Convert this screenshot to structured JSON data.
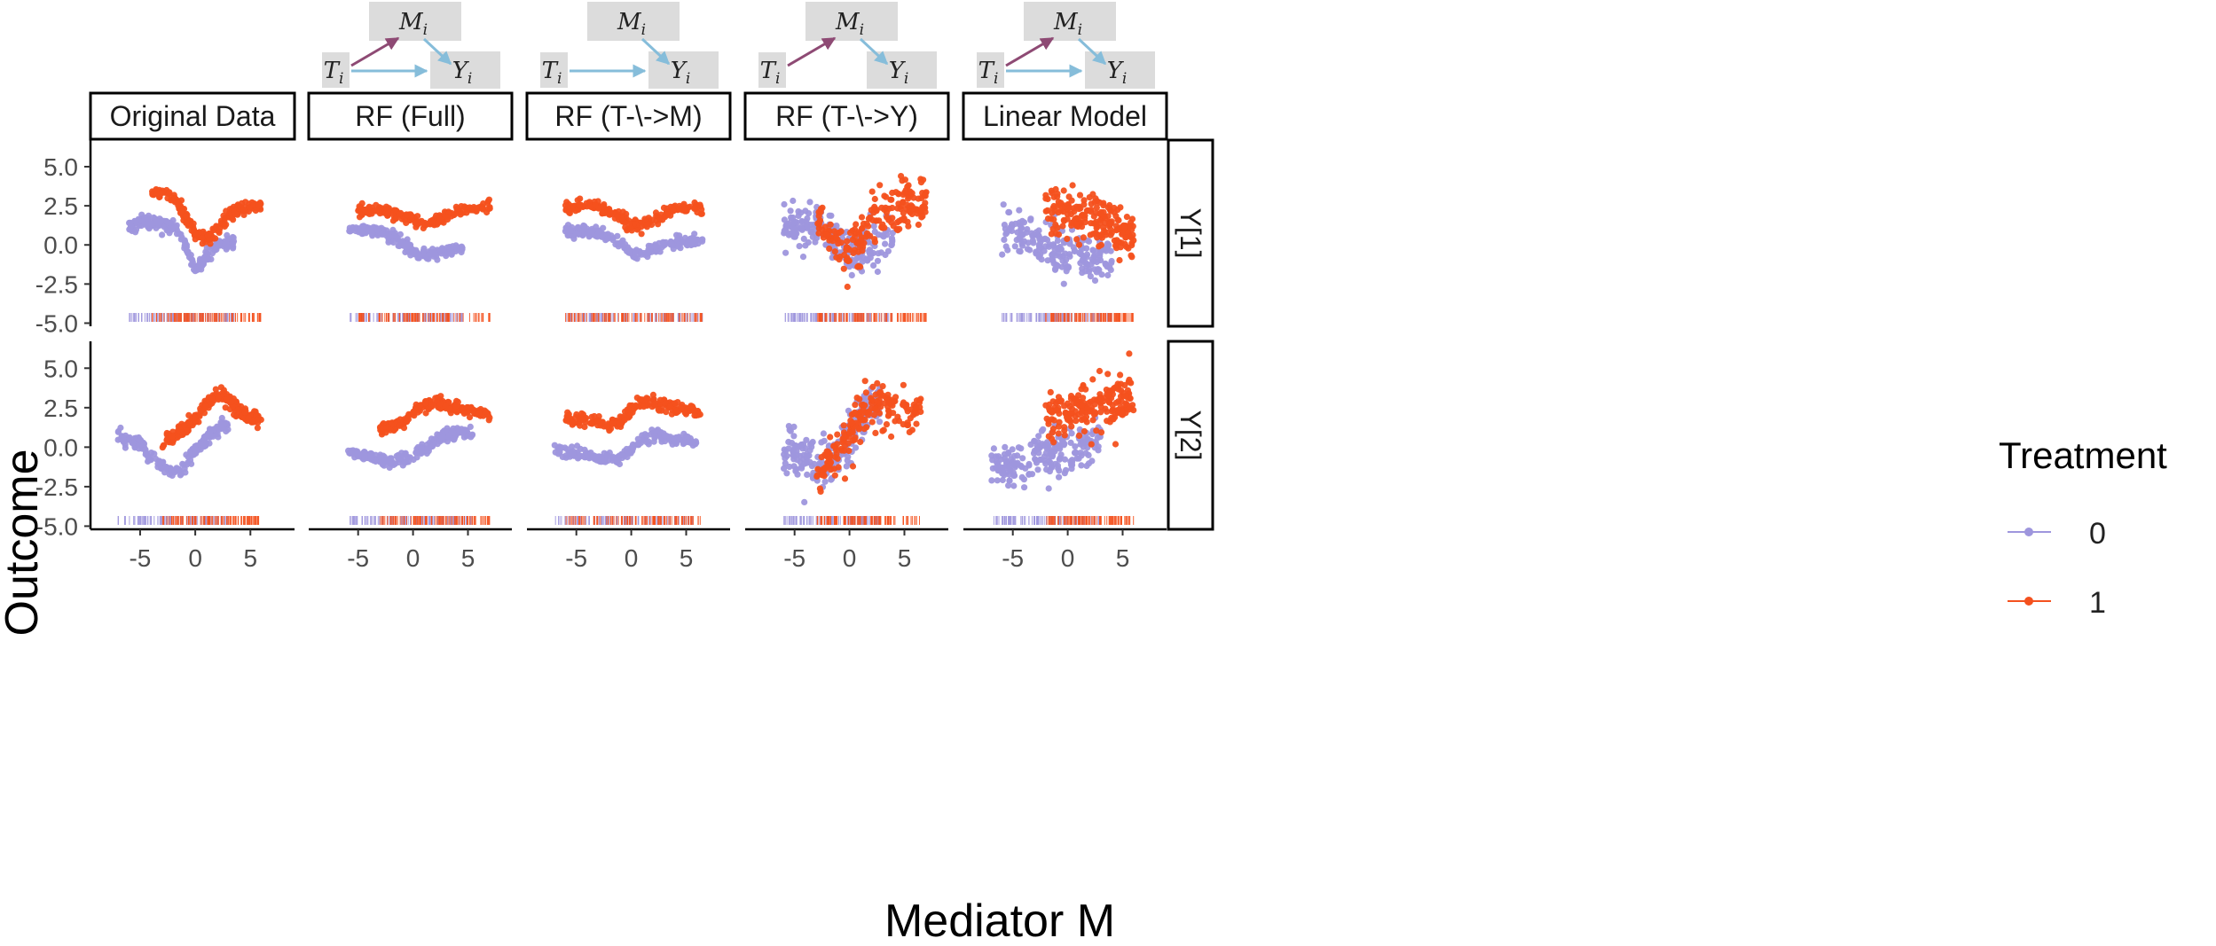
{
  "axis": {
    "xlabel": "Mediator M",
    "ylabel": "Outcome",
    "x_ticks": [
      -5,
      0,
      5
    ],
    "x_tick_labels": [
      "-5",
      "0",
      "5"
    ],
    "y_ticks": [
      -5,
      -2.5,
      0,
      2.5,
      5
    ],
    "y_tick_labels": [
      "-5.0",
      "-2.5",
      "0.0",
      "2.5",
      "5.0"
    ]
  },
  "legend": {
    "title": "Treatment",
    "items": [
      {
        "label": "0",
        "color": "#9E96DD"
      },
      {
        "label": "1",
        "color": "#F4511E"
      }
    ]
  },
  "panels": {
    "columns": [
      "Original Data",
      "RF (Full)",
      "RF (T-\\->M)",
      "RF (T-\\->Y)",
      "Linear Model"
    ],
    "rows": [
      "Y[1]",
      "Y[2]"
    ]
  },
  "dags": [
    {
      "column": "RF (Full)",
      "t_to_m": true,
      "t_to_y": true
    },
    {
      "column": "RF (T-\\->M)",
      "t_to_m": false,
      "t_to_y": true
    },
    {
      "column": "RF (T-\\->Y)",
      "t_to_m": true,
      "t_to_y": false
    },
    {
      "column": "Linear Model",
      "t_to_m": true,
      "t_to_y": true
    }
  ],
  "dag_labels": {
    "m": "M",
    "m_sub": "i",
    "t": "T",
    "t_sub": "i",
    "y": "Y",
    "y_sub": "i"
  },
  "colors": {
    "t0": "#9E96DD",
    "t1": "#F4511E",
    "dag_node": "#DCDCDC",
    "dag_arrow_tm": "#8E4A74",
    "dag_arrow_other": "#86BDDA"
  },
  "chart_data": {
    "type": "scatter",
    "title": "",
    "xlabel": "Mediator M",
    "ylabel": "Outcome",
    "xlim": [
      -9.5,
      9
    ],
    "ylim": [
      -5.2,
      6.7
    ],
    "grid": false,
    "legend_position": "right",
    "rug": true,
    "series": [
      {
        "name": "0",
        "color": "#9E96DD"
      },
      {
        "name": "1",
        "color": "#F4511E"
      }
    ],
    "panel_approximations": [
      {
        "column": "Original Data",
        "row": "Y[1]",
        "treatment_0_curve": {
          "x": [
            -6,
            -4,
            -2,
            -1,
            0,
            1,
            2,
            3.5
          ],
          "y": [
            1.2,
            1.5,
            1.2,
            0.2,
            -1.6,
            -0.8,
            0,
            0.3
          ]
        },
        "treatment_1_curve": {
          "x": [
            -4,
            -2,
            -1,
            0,
            1,
            2,
            3,
            4,
            6
          ],
          "y": [
            3.4,
            3.0,
            2.0,
            0.8,
            0.4,
            0.9,
            1.8,
            2.3,
            2.6
          ]
        }
      },
      {
        "column": "RF (Full)",
        "row": "Y[1]",
        "treatment_0_curve": {
          "x": [
            -6,
            -3,
            -1,
            0,
            1,
            3,
            4.5
          ],
          "y": [
            1.0,
            0.9,
            0.2,
            -0.5,
            -0.7,
            -0.4,
            -0.2
          ]
        },
        "treatment_1_curve": {
          "x": [
            -5,
            -2,
            0,
            1,
            2,
            4,
            7
          ],
          "y": [
            2.2,
            2.2,
            1.6,
            1.3,
            1.5,
            2.2,
            2.5
          ]
        }
      },
      {
        "column": "RF (T-\\->M)",
        "row": "Y[1]",
        "treatment_0_curve": {
          "x": [
            -6,
            -3,
            -1,
            0,
            1,
            2,
            4,
            6.5
          ],
          "y": [
            0.9,
            0.8,
            0.2,
            -0.5,
            -0.6,
            -0.3,
            0.1,
            0.4
          ]
        },
        "treatment_1_curve": {
          "x": [
            -6,
            -3,
            -1,
            0,
            1,
            2,
            4,
            6.5
          ],
          "y": [
            2.4,
            2.5,
            1.8,
            1.2,
            1.3,
            1.6,
            2.3,
            2.4
          ]
        }
      },
      {
        "column": "RF (T-\\->Y)",
        "row": "Y[1]",
        "treatment_0_curve": {
          "x": [
            -6,
            -3,
            -1,
            0,
            2,
            4
          ],
          "y": [
            1.2,
            1.3,
            0.5,
            -0.8,
            -0.2,
            0.3
          ]
        },
        "treatment_1_curve": {
          "x": [
            -3,
            -1,
            0,
            1,
            2,
            3,
            5,
            7
          ],
          "y": [
            1.5,
            0.3,
            -0.8,
            0.5,
            1.7,
            2.3,
            2.8,
            2.8
          ]
        }
      },
      {
        "column": "Linear Model",
        "row": "Y[1]",
        "treatment_0_curve": {
          "x": [
            -6,
            -4,
            -2,
            0,
            2,
            4
          ],
          "y": [
            0.9,
            0.7,
            0.3,
            -0.4,
            -0.9,
            -1.0
          ]
        },
        "treatment_1_curve": {
          "x": [
            -2,
            0,
            2,
            4,
            6
          ],
          "y": [
            2.3,
            2.1,
            1.7,
            1.2,
            0.9
          ]
        }
      },
      {
        "column": "Original Data",
        "row": "Y[2]",
        "treatment_0_curve": {
          "x": [
            -7,
            -5,
            -3,
            -2,
            -1,
            0,
            1,
            2,
            3
          ],
          "y": [
            0.6,
            0.2,
            -1.2,
            -1.6,
            -1.1,
            -0.2,
            0.6,
            1.2,
            1.3
          ]
        },
        "treatment_1_curve": {
          "x": [
            -3,
            -2,
            -1,
            0,
            1,
            2,
            3,
            4,
            5,
            6
          ],
          "y": [
            0.2,
            0.6,
            1.2,
            1.8,
            2.7,
            3.4,
            3.0,
            2.3,
            1.8,
            1.6
          ]
        }
      },
      {
        "column": "RF (Full)",
        "row": "Y[2]",
        "treatment_0_curve": {
          "x": [
            -6,
            -4,
            -2,
            0,
            1,
            2,
            3,
            5.5
          ],
          "y": [
            -0.3,
            -0.6,
            -0.9,
            -0.6,
            -0.1,
            0.4,
            0.8,
            1.0
          ]
        },
        "treatment_1_curve": {
          "x": [
            -3,
            -2,
            -1,
            0,
            1,
            2,
            3,
            5,
            7
          ],
          "y": [
            1.2,
            1.3,
            1.5,
            2.2,
            2.7,
            2.9,
            2.6,
            2.3,
            2.1
          ]
        }
      },
      {
        "column": "RF (T-\\->M)",
        "row": "Y[2]",
        "treatment_0_curve": {
          "x": [
            -7,
            -5,
            -3,
            -1,
            0,
            1,
            2,
            4,
            6
          ],
          "y": [
            -0.1,
            -0.4,
            -0.7,
            -0.8,
            -0.2,
            0.6,
            0.8,
            0.5,
            0.3
          ]
        },
        "treatment_1_curve": {
          "x": [
            -6,
            -4,
            -2,
            -1,
            0,
            1,
            2,
            4,
            6.5
          ],
          "y": [
            1.7,
            1.7,
            1.4,
            1.6,
            2.4,
            2.9,
            2.8,
            2.5,
            2.2
          ]
        }
      },
      {
        "column": "RF (T-\\->Y)",
        "row": "Y[2]",
        "treatment_0_curve": {
          "x": [
            -6,
            -4,
            -2,
            0,
            1,
            2,
            3
          ],
          "y": [
            -0.2,
            -0.6,
            -1.2,
            0.6,
            1.8,
            2.5,
            3.0
          ]
        },
        "treatment_1_curve": {
          "x": [
            -3,
            -1,
            0,
            1,
            2,
            3,
            5,
            6.5
          ],
          "y": [
            -1.5,
            -0.2,
            0.8,
            1.8,
            2.8,
            2.6,
            2.0,
            2.2
          ]
        }
      },
      {
        "column": "Linear Model",
        "row": "Y[2]",
        "treatment_0_curve": {
          "x": [
            -7,
            -5,
            -3,
            -1,
            1,
            3
          ],
          "y": [
            -1.3,
            -1.1,
            -0.6,
            -0.3,
            0.0,
            0.4
          ]
        },
        "treatment_1_curve": {
          "x": [
            -2,
            0,
            2,
            4,
            6
          ],
          "y": [
            2.0,
            2.2,
            2.5,
            2.8,
            3.2
          ]
        }
      }
    ],
    "approx_points_per_group": 200,
    "approx_spread": 0.3,
    "note_spread_by_column": [
      0.22,
      0.18,
      0.18,
      0.75,
      0.75
    ]
  }
}
